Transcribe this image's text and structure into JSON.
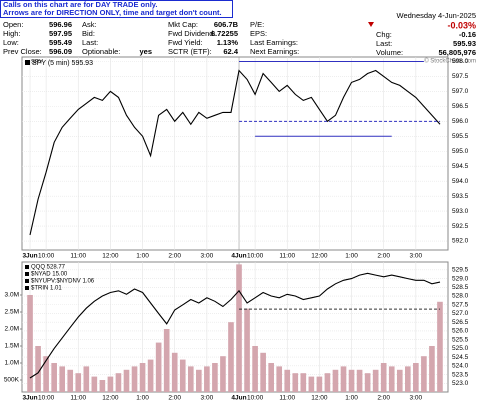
{
  "header": {
    "notice": [
      "Calls on this chart are for DAY TRADE only.",
      "Arrows are for DIRECTION ONLY, time and target don't count."
    ],
    "stats": [
      [
        {
          "label": "Open:",
          "value": "596.96"
        },
        {
          "label": "Ask:"
        },
        {
          "label": "Mkt Cap:",
          "value": "606.7B"
        },
        {
          "label": "P/E:"
        }
      ],
      [
        {
          "label": "High:",
          "value": "597.95"
        },
        {
          "label": "Bid:"
        },
        {
          "label": "Fwd Dividend:",
          "value": "6.72255"
        },
        {
          "label": "EPS:"
        }
      ],
      [
        {
          "label": "Low:",
          "value": "595.49"
        },
        {
          "label": "Last:"
        },
        {
          "label": "Fwd Yield:",
          "value": "1.13%"
        },
        {
          "label": "Last Earnings:"
        }
      ],
      [
        {
          "label": "Prev Close:",
          "value": "596.09"
        },
        {
          "label": "Optionable:",
          "value": "yes"
        },
        {
          "label": "SCTR (ETF):",
          "value": "62.4"
        },
        {
          "label": "Next Earnings:"
        }
      ]
    ],
    "date": "Wednesday 4-Jun-2025",
    "change_pct": "-0.03%",
    "quote": [
      {
        "label": "Chg:",
        "value": "-0.16"
      },
      {
        "label": "Last:",
        "value": "595.93"
      },
      {
        "label": "Volume:",
        "value": "56,805,976"
      }
    ],
    "watermark": "© StockCharts.com"
  },
  "chart_data": [
    {
      "type": "line",
      "title": "SPY (5 min) 595.93",
      "grid": true,
      "x": [
        0,
        1,
        2,
        3,
        4,
        5,
        6,
        7,
        8,
        9,
        10,
        11,
        12,
        13,
        14,
        15,
        16,
        17,
        18,
        19,
        20,
        21,
        22,
        23,
        24,
        25,
        26,
        27,
        28,
        29,
        30,
        31,
        32,
        33,
        34,
        35,
        36,
        37,
        38,
        39,
        40,
        41,
        42,
        43,
        44,
        45,
        46,
        47,
        48,
        49,
        50,
        51
      ],
      "series": [
        {
          "name": "SPY",
          "color": "#000000",
          "values": [
            592.2,
            593.4,
            594.3,
            595.3,
            595.8,
            596.1,
            596.4,
            596.6,
            596.8,
            596.7,
            597.0,
            596.8,
            596.2,
            595.8,
            595.5,
            594.85,
            596.2,
            596.4,
            596.0,
            596.3,
            595.9,
            596.3,
            596.1,
            596.2,
            596.3,
            596.3,
            597.7,
            597.4,
            596.9,
            597.6,
            597.3,
            597.0,
            597.2,
            596.9,
            596.7,
            596.8,
            596.4,
            596.0,
            596.2,
            596.8,
            597.3,
            597.4,
            597.6,
            597.7,
            597.5,
            597.3,
            597.2,
            597.0,
            596.8,
            596.5,
            596.2,
            595.9
          ]
        }
      ],
      "hlines": [
        {
          "value": 598.0,
          "x0": 26,
          "x1": 49,
          "color": "#3030c0",
          "dash": false
        },
        {
          "value": 596.0,
          "x0": 26,
          "x1": 51,
          "color": "#3030c0",
          "dash": true
        },
        {
          "value": 595.5,
          "x0": 28,
          "x1": 45,
          "color": "#3030c0",
          "dash": false
        }
      ],
      "xlim": [
        -1,
        52
      ],
      "xticks": [
        {
          "value": 0,
          "label": "3Jun"
        },
        {
          "value": 2,
          "label": "10:00"
        },
        {
          "value": 6,
          "label": "11:00"
        },
        {
          "value": 10,
          "label": "12:00"
        },
        {
          "value": 14,
          "label": "1:00"
        },
        {
          "value": 18,
          "label": "2:00"
        },
        {
          "value": 22,
          "label": "3:00"
        },
        {
          "value": 26,
          "label": "4Jun"
        },
        {
          "value": 28,
          "label": "10:00"
        },
        {
          "value": 32,
          "label": "11:00"
        },
        {
          "value": 36,
          "label": "12:00"
        },
        {
          "value": 40,
          "label": "1:00"
        },
        {
          "value": 44,
          "label": "2:00"
        },
        {
          "value": 48,
          "label": "3:00"
        }
      ],
      "ylim": [
        591.7,
        598.15
      ],
      "yticks": [
        {
          "value": 592,
          "label": "592.0"
        },
        592.5,
        {
          "value": 593,
          "label": "593.0"
        },
        593.5,
        {
          "value": 594,
          "label": "594.0"
        },
        594.5,
        {
          "value": 595,
          "label": "595.0"
        },
        595.5,
        {
          "value": 596,
          "label": "596.0"
        },
        596.5,
        {
          "value": 597,
          "label": "597.0"
        },
        597.5,
        {
          "value": 598,
          "label": "598.0"
        }
      ]
    },
    {
      "type": "bar",
      "grid": true,
      "legend_extra": [
        "$NYAD 15.00",
        "$NYUPV:$NYDNV 1.06",
        "$TRIN 1.01"
      ],
      "x": [
        0,
        1,
        2,
        3,
        4,
        5,
        6,
        7,
        8,
        9,
        10,
        11,
        12,
        13,
        14,
        15,
        16,
        17,
        18,
        19,
        20,
        21,
        22,
        23,
        24,
        25,
        26,
        27,
        28,
        29,
        30,
        31,
        32,
        33,
        34,
        35,
        36,
        37,
        38,
        39,
        40,
        41,
        42,
        43,
        44,
        45,
        46,
        47,
        48,
        49,
        50,
        51
      ],
      "series": [
        {
          "name": "Volume",
          "type": "bar",
          "axis": "y",
          "color": "#d4a6ae",
          "values": [
            3000000,
            1500000,
            1200000,
            1000000,
            900000,
            800000,
            700000,
            900000,
            600000,
            500000,
            600000,
            700000,
            800000,
            900000,
            1000000,
            1100000,
            1600000,
            2000000,
            1300000,
            1100000,
            900000,
            800000,
            900000,
            1000000,
            1200000,
            2200000,
            3900000,
            2600000,
            1500000,
            1300000,
            1000000,
            900000,
            800000,
            700000,
            700000,
            600000,
            600000,
            700000,
            800000,
            900000,
            800000,
            800000,
            700000,
            800000,
            1000000,
            900000,
            800000,
            900000,
            1000000,
            1200000,
            1500000,
            2800000
          ]
        },
        {
          "name": "QQQ 528.77",
          "type": "line",
          "axis": "y2",
          "color": "#000000",
          "values": [
            523.3,
            523.6,
            524.3,
            525.0,
            525.6,
            526.2,
            526.8,
            527.3,
            527.7,
            528.0,
            528.2,
            528.3,
            528.1,
            528.4,
            528.2,
            527.6,
            527.0,
            526.4,
            527.2,
            527.5,
            527.8,
            527.6,
            527.9,
            527.7,
            527.4,
            527.8,
            528.3,
            527.6,
            527.9,
            528.2,
            528.0,
            527.9,
            528.1,
            528.0,
            527.8,
            527.9,
            528.0,
            528.4,
            528.7,
            528.9,
            529.0,
            529.2,
            529.3,
            529.2,
            529.1,
            529.2,
            529.1,
            529.0,
            528.9,
            528.9,
            528.7,
            528.8
          ]
        }
      ],
      "hlines": [
        {
          "value": 527.25,
          "x0": 26,
          "x1": 51,
          "color": "#303030",
          "dash": true,
          "axis": "y2"
        }
      ],
      "xlim": [
        -1,
        52
      ],
      "xticks": [
        {
          "value": 0,
          "label": "3Jun"
        },
        {
          "value": 2,
          "label": "10:00"
        },
        {
          "value": 6,
          "label": "11:00"
        },
        {
          "value": 10,
          "label": "12:00"
        },
        {
          "value": 14,
          "label": "1:00"
        },
        {
          "value": 18,
          "label": "2:00"
        },
        {
          "value": 22,
          "label": "3:00"
        },
        {
          "value": 26,
          "label": "4Jun"
        },
        {
          "value": 28,
          "label": "10:00"
        },
        {
          "value": 32,
          "label": "11:00"
        },
        {
          "value": 36,
          "label": "12:00"
        },
        {
          "value": 40,
          "label": "1:00"
        },
        {
          "value": 44,
          "label": "2:00"
        },
        {
          "value": 48,
          "label": "3:00"
        }
      ],
      "ylim": [
        147000,
        3970000
      ],
      "yticks": [
        {
          "value": 500000,
          "label": "500K"
        },
        {
          "value": 1000000,
          "label": "1.0M"
        },
        {
          "value": 1500000,
          "label": "1.5M"
        },
        {
          "value": 2000000,
          "label": "2.0M"
        },
        {
          "value": 2500000,
          "label": "2.5M"
        },
        {
          "value": 3000000,
          "label": "3.0M"
        }
      ],
      "y2lim": [
        522.5,
        529.95
      ],
      "y2ticks": [
        {
          "value": 523,
          "label": "523.0"
        },
        523.5,
        {
          "value": 524,
          "label": "524.0"
        },
        524.5,
        {
          "value": 525,
          "label": "525.0"
        },
        525.5,
        {
          "value": 526,
          "label": "526.0"
        },
        526.5,
        {
          "value": 527,
          "label": "527.0"
        },
        527.5,
        {
          "value": 528,
          "label": "528.0"
        },
        528.5,
        {
          "value": 529,
          "label": "529.0"
        },
        529.5
      ]
    }
  ]
}
